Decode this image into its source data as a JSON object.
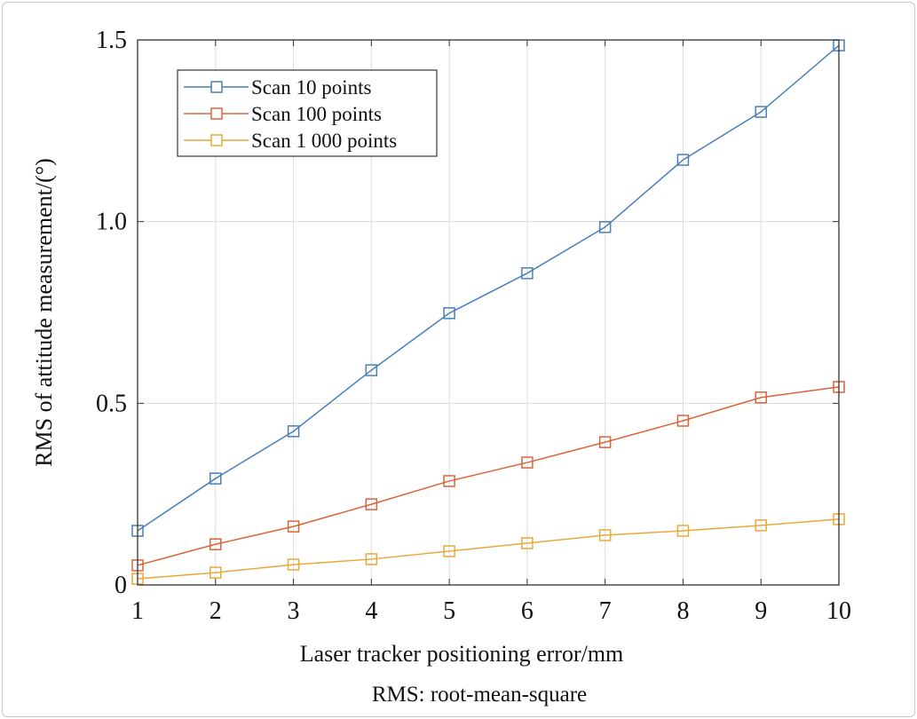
{
  "chart_data": {
    "type": "line",
    "title": "",
    "xlabel": "Laser tracker positioning error/mm",
    "ylabel": "RMS of attitude measurement/(°)",
    "note": "RMS: root-mean-square",
    "x": [
      1,
      2,
      3,
      4,
      5,
      6,
      7,
      8,
      9,
      10
    ],
    "xlim": [
      1,
      10
    ],
    "ylim": [
      0,
      1.5
    ],
    "x_ticks": [
      "1",
      "2",
      "3",
      "4",
      "5",
      "6",
      "7",
      "8",
      "9",
      "10"
    ],
    "y_ticks": [
      {
        "value": 0,
        "label": "0"
      },
      {
        "value": 0.5,
        "label": "0.5"
      },
      {
        "value": 1.0,
        "label": "1.0"
      },
      {
        "value": 1.5,
        "label": "1.5"
      }
    ],
    "grid": true,
    "legend_position": "top-left",
    "series": [
      {
        "name": "Scan 10 points",
        "color": "#4a7fb8",
        "marker": "square",
        "values": [
          0.149,
          0.293,
          0.423,
          0.591,
          0.748,
          0.858,
          0.985,
          1.17,
          1.302,
          1.485
        ]
      },
      {
        "name": "Scan 100 points",
        "color": "#d9643a",
        "marker": "square",
        "values": [
          0.054,
          0.112,
          0.161,
          0.222,
          0.286,
          0.337,
          0.393,
          0.452,
          0.516,
          0.545
        ]
      },
      {
        "name": "Scan 1 000 points",
        "color": "#e8a93a",
        "marker": "square",
        "values": [
          0.017,
          0.034,
          0.056,
          0.071,
          0.093,
          0.115,
          0.137,
          0.149,
          0.164,
          0.181
        ]
      }
    ]
  }
}
